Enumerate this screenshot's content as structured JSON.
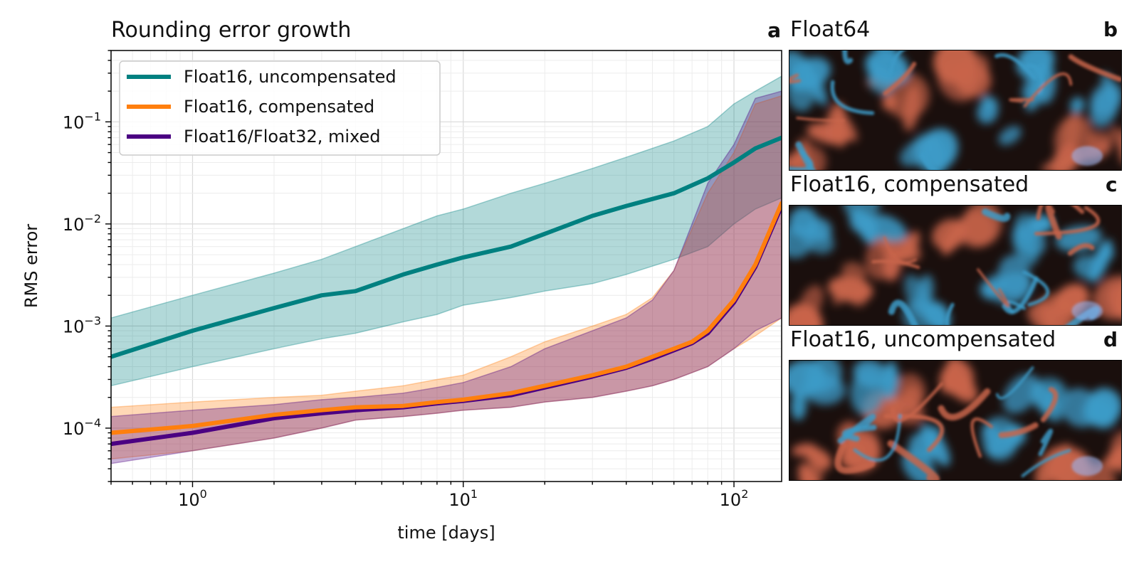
{
  "chart_data": {
    "type": "line",
    "title": "Rounding error growth",
    "panel_label": "a",
    "xlabel": "time [days]",
    "ylabel": "RMS error",
    "xscale": "log",
    "yscale": "log",
    "xlim": [
      0.5,
      150
    ],
    "ylim": [
      3e-05,
      0.5
    ],
    "grid": true,
    "legend_position": "top-left",
    "x_tick_labels": [
      {
        "base": "10",
        "exp": "0",
        "value": 1
      },
      {
        "base": "10",
        "exp": "1",
        "value": 10
      },
      {
        "base": "10",
        "exp": "2",
        "value": 100
      }
    ],
    "y_tick_labels": [
      {
        "base": "10",
        "exp": "−4",
        "value": 0.0001
      },
      {
        "base": "10",
        "exp": "−3",
        "value": 0.001
      },
      {
        "base": "10",
        "exp": "−2",
        "value": 0.01
      },
      {
        "base": "10",
        "exp": "−1",
        "value": 0.1
      }
    ],
    "series": [
      {
        "name": "Float16, uncompensated",
        "color": "#008080",
        "x": [
          0.5,
          1,
          2,
          3,
          4,
          6,
          8,
          10,
          15,
          20,
          30,
          40,
          60,
          80,
          100,
          120,
          150
        ],
        "y": [
          0.0005,
          0.0009,
          0.0015,
          0.002,
          0.0022,
          0.0032,
          0.004,
          0.0047,
          0.006,
          0.008,
          0.012,
          0.015,
          0.02,
          0.028,
          0.04,
          0.055,
          0.07
        ],
        "lower": [
          0.00026,
          0.0004,
          0.0006,
          0.00075,
          0.00085,
          0.0011,
          0.0013,
          0.0016,
          0.0019,
          0.0022,
          0.0026,
          0.0032,
          0.0045,
          0.006,
          0.01,
          0.014,
          0.018
        ],
        "upper": [
          0.0012,
          0.002,
          0.0033,
          0.0045,
          0.006,
          0.009,
          0.012,
          0.014,
          0.02,
          0.025,
          0.035,
          0.045,
          0.065,
          0.09,
          0.15,
          0.2,
          0.28
        ]
      },
      {
        "name": "Float16, compensated",
        "color": "#ff7f0e",
        "x": [
          0.5,
          1,
          2,
          3,
          4,
          6,
          8,
          10,
          15,
          20,
          30,
          40,
          50,
          60,
          70,
          80,
          100,
          120,
          150
        ],
        "y": [
          9e-05,
          0.000105,
          0.000135,
          0.00015,
          0.00016,
          0.000165,
          0.00018,
          0.00019,
          0.00022,
          0.00026,
          0.00033,
          0.0004,
          0.0005,
          0.0006,
          0.0007,
          0.0009,
          0.0018,
          0.004,
          0.016
        ],
        "lower": [
          5e-05,
          6e-05,
          8e-05,
          0.0001,
          0.00012,
          0.00013,
          0.00014,
          0.00015,
          0.00016,
          0.00018,
          0.0002,
          0.00023,
          0.00026,
          0.0003,
          0.00035,
          0.0004,
          0.0006,
          0.0008,
          0.0012
        ],
        "upper": [
          0.00016,
          0.00018,
          0.0002,
          0.00021,
          0.00023,
          0.00026,
          0.0003,
          0.00033,
          0.0005,
          0.0007,
          0.001,
          0.0013,
          0.0019,
          0.0035,
          0.009,
          0.02,
          0.05,
          0.15,
          0.18
        ]
      },
      {
        "name": "Float16/Float32, mixed",
        "color": "#4b0082",
        "x": [
          0.5,
          1,
          2,
          3,
          4,
          6,
          8,
          10,
          15,
          20,
          30,
          40,
          50,
          60,
          70,
          80,
          100,
          120,
          150
        ],
        "y": [
          7e-05,
          9e-05,
          0.000125,
          0.00014,
          0.00015,
          0.00016,
          0.000175,
          0.000185,
          0.00021,
          0.00025,
          0.00032,
          0.00039,
          0.00048,
          0.00058,
          0.00068,
          0.00085,
          0.0017,
          0.0038,
          0.015
        ],
        "lower": [
          4.5e-05,
          6e-05,
          8e-05,
          0.0001,
          0.00012,
          0.00013,
          0.00014,
          0.00015,
          0.00016,
          0.00018,
          0.0002,
          0.00023,
          0.00026,
          0.0003,
          0.00035,
          0.0004,
          0.0006,
          0.0009,
          0.0012
        ],
        "upper": [
          0.00013,
          0.00015,
          0.00017,
          0.00019,
          0.0002,
          0.00022,
          0.00025,
          0.00028,
          0.0004,
          0.0006,
          0.0009,
          0.0012,
          0.0018,
          0.0035,
          0.01,
          0.025,
          0.06,
          0.17,
          0.2
        ]
      }
    ]
  },
  "panels": [
    {
      "title": "Float64",
      "label": "b"
    },
    {
      "title": "Float16, compensated",
      "label": "c"
    },
    {
      "title": "Float16, uncompensated",
      "label": "d"
    }
  ],
  "colors": {
    "teal": "#008080",
    "orange": "#ff7f0e",
    "indigo": "#4b0082",
    "field_positive": "#c8644a",
    "field_negative": "#3c9bc8",
    "field_dark": "#1a0f0d"
  }
}
